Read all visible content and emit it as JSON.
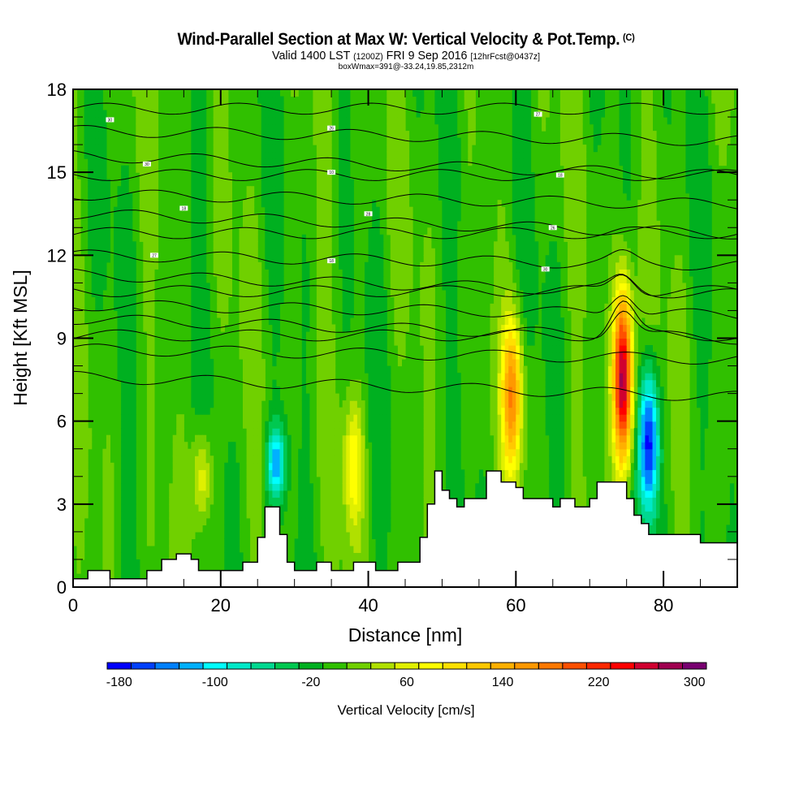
{
  "header": {
    "title": "Wind-Parallel Section at Max W: Vertical Velocity & Pot.Temp.",
    "copyright": "(C)",
    "valid_prefix": "Valid 1400 LST",
    "valid_utc": "(1200Z)",
    "valid_date": "FRI 9 Sep 2016",
    "forecast": "[12hrFcst@0437z]",
    "box_info": "boxWmax=391@-33.24,19.85,2312m"
  },
  "chart_data": {
    "type": "heatmap",
    "title": "Wind-Parallel Section at Max W: Vertical Velocity & Pot.Temp.",
    "subtitle": "Valid 1400 LST (1200Z) FRI 9 Sep 2016 [12hrFcst@0437z]",
    "annotation": "boxWmax=391@-33.24,19.85,2312m",
    "xlabel": "Distance [nm]",
    "ylabel": "Height [Kft MSL]",
    "xlim": [
      0,
      90
    ],
    "ylim": [
      0,
      18
    ],
    "xticks": [
      0,
      20,
      40,
      60,
      80
    ],
    "yticks": [
      0,
      3,
      6,
      9,
      12,
      15,
      18
    ],
    "colorbar": {
      "title": "Vertical Velocity [cm/s]",
      "levels": [
        -180,
        -160,
        -140,
        -120,
        -100,
        -80,
        -60,
        -40,
        -20,
        0,
        20,
        40,
        60,
        80,
        100,
        120,
        140,
        160,
        180,
        200,
        220,
        240,
        260,
        280,
        300,
        320
      ],
      "tick_labels": [
        "-180",
        "-100",
        "-20",
        "60",
        "140",
        "220",
        "300"
      ],
      "colors": [
        "#0000ff",
        "#0040ff",
        "#0080ff",
        "#00b0ff",
        "#00ffff",
        "#00e8c8",
        "#00d890",
        "#00c850",
        "#00b020",
        "#30c000",
        "#70d000",
        "#b0e000",
        "#e0f000",
        "#ffff00",
        "#ffe000",
        "#ffc800",
        "#ffb000",
        "#ff9800",
        "#ff7800",
        "#ff5000",
        "#ff2800",
        "#ff0000",
        "#d00030",
        "#a00050",
        "#780070"
      ]
    },
    "features": [
      {
        "name": "updraft",
        "x_nm": 74.5,
        "height_kft": [
          4,
          11
        ],
        "peak_cm_s": 300
      },
      {
        "name": "downdraft",
        "x_nm": 78,
        "height_kft": [
          2.5,
          8
        ],
        "peak_cm_s": -180
      },
      {
        "name": "updraft",
        "x_nm": 59.5,
        "height_kft": [
          4,
          10
        ],
        "peak_cm_s": 160
      },
      {
        "name": "updraft",
        "x_nm": 17.5,
        "height_kft": [
          2,
          6
        ],
        "peak_cm_s": 80
      },
      {
        "name": "updraft",
        "x_nm": 38,
        "height_kft": [
          2,
          7
        ],
        "peak_cm_s": 80
      },
      {
        "name": "downdraft",
        "x_nm": 27.5,
        "height_kft": [
          3,
          6
        ],
        "peak_cm_s": -120
      }
    ],
    "terrain_kft": [
      [
        0,
        0.3
      ],
      [
        2,
        0.6
      ],
      [
        5,
        0.3
      ],
      [
        9,
        0.3
      ],
      [
        10,
        0.6
      ],
      [
        12,
        1.0
      ],
      [
        14,
        1.2
      ],
      [
        16,
        1.0
      ],
      [
        17,
        0.6
      ],
      [
        22,
        0.6
      ],
      [
        23,
        0.9
      ],
      [
        25,
        1.8
      ],
      [
        26,
        2.9
      ],
      [
        28,
        1.9
      ],
      [
        29,
        0.9
      ],
      [
        30,
        0.6
      ],
      [
        33,
        0.9
      ],
      [
        35,
        0.6
      ],
      [
        38,
        0.9
      ],
      [
        41,
        0.6
      ],
      [
        44,
        0.9
      ],
      [
        47,
        1.8
      ],
      [
        48,
        3.0
      ],
      [
        49,
        4.2
      ],
      [
        50,
        3.5
      ],
      [
        51,
        3.2
      ],
      [
        52,
        2.9
      ],
      [
        53,
        3.2
      ],
      [
        54,
        3.2
      ],
      [
        56,
        4.2
      ],
      [
        58,
        3.8
      ],
      [
        60,
        3.6
      ],
      [
        61,
        3.2
      ],
      [
        63,
        3.2
      ],
      [
        65,
        2.9
      ],
      [
        66,
        3.2
      ],
      [
        68,
        2.9
      ],
      [
        70,
        3.2
      ],
      [
        71,
        3.8
      ],
      [
        74,
        3.8
      ],
      [
        75,
        3.2
      ],
      [
        76,
        2.6
      ],
      [
        77,
        2.3
      ],
      [
        78,
        1.9
      ],
      [
        84,
        1.9
      ],
      [
        85,
        1.6
      ],
      [
        90,
        1.6
      ]
    ],
    "theta_contour_labels": [
      "30",
      "26",
      "27",
      "30",
      "10",
      "18",
      "18",
      "28",
      "26",
      "27",
      "18",
      "30"
    ]
  }
}
